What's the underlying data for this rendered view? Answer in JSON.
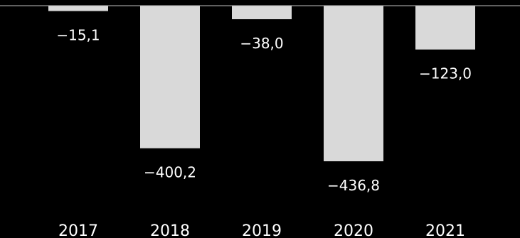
{
  "chart_data": {
    "type": "bar",
    "categories": [
      "2017",
      "2018",
      "2019",
      "2020",
      "2021"
    ],
    "values": [
      -15.1,
      -400.2,
      -38.0,
      -436.8,
      -123.0
    ],
    "value_labels": [
      "−15,1",
      "−400,2",
      "−38,0",
      "−436,8",
      "−123,0"
    ],
    "title": "",
    "xlabel": "",
    "ylabel": "",
    "ylim": [
      -436.8,
      0
    ],
    "grid": false,
    "legend": "none",
    "colors": {
      "background": "#000000",
      "bar": "#d9d9d9",
      "baseline": "#bfbfbf",
      "text": "#ffffff"
    }
  }
}
